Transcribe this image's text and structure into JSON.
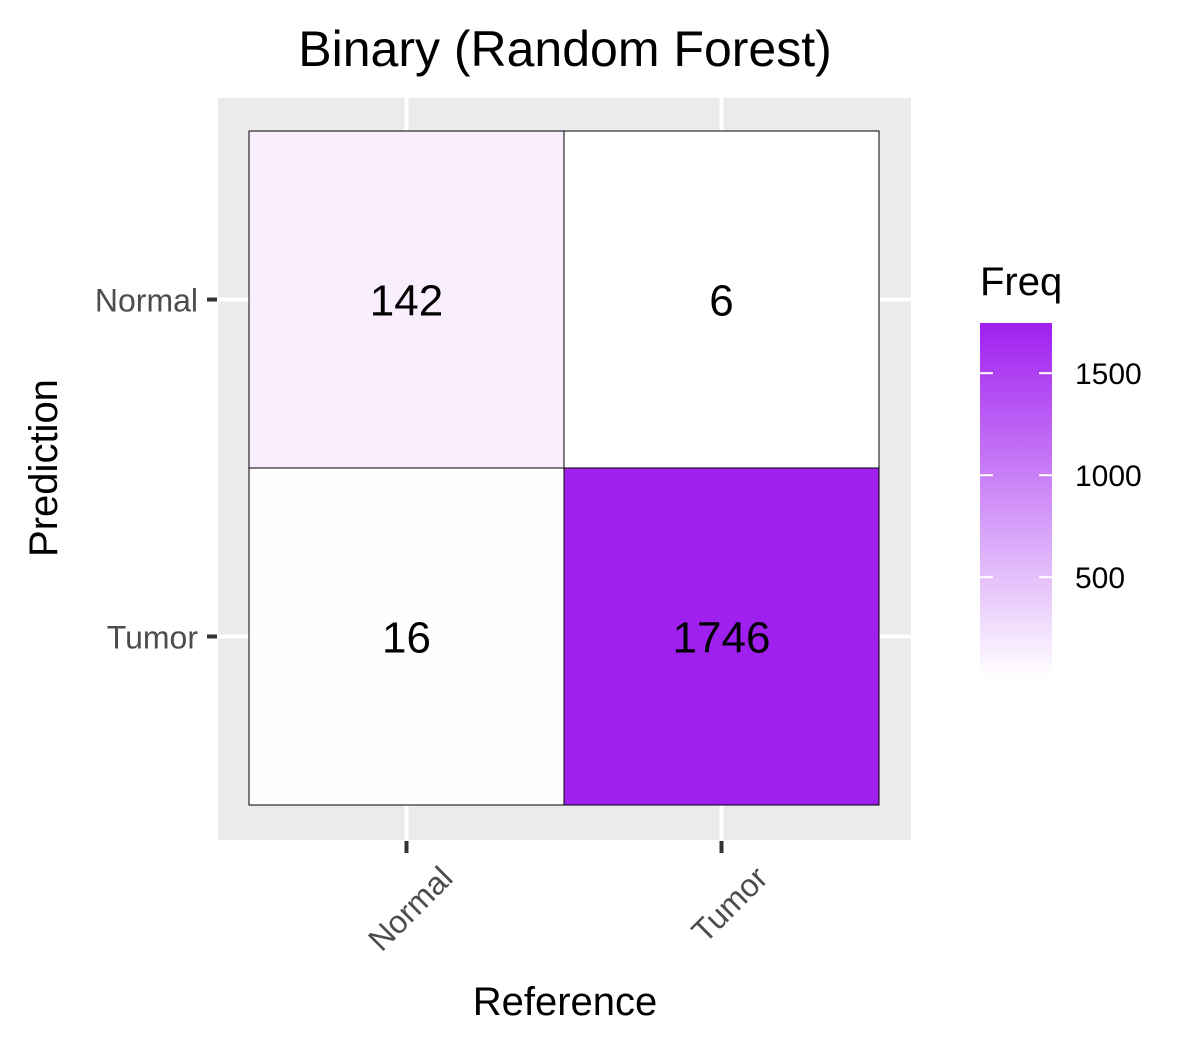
{
  "chart_data": {
    "type": "heatmap",
    "title": "Binary (Random Forest)",
    "xlabel": "Reference",
    "ylabel": "Prediction",
    "x_categories": [
      "Normal",
      "Tumor"
    ],
    "y_categories": [
      "Normal",
      "Tumor"
    ],
    "cells": [
      {
        "reference": "Normal",
        "prediction": "Normal",
        "value": 142,
        "label": "142"
      },
      {
        "reference": "Tumor",
        "prediction": "Normal",
        "value": 6,
        "label": "6"
      },
      {
        "reference": "Normal",
        "prediction": "Tumor",
        "value": 16,
        "label": "16"
      },
      {
        "reference": "Tumor",
        "prediction": "Tumor",
        "value": 1746,
        "label": "1746"
      }
    ],
    "legend": {
      "title": "Freq",
      "position": "right",
      "ticks": [
        500,
        1000,
        1500
      ],
      "tick_labels": [
        "500",
        "1000",
        "1500"
      ],
      "range": [
        6,
        1746
      ],
      "color_low": "#ffffff",
      "color_high": "#a020f0"
    },
    "panel_background": "#ebebeb",
    "grid": true
  }
}
